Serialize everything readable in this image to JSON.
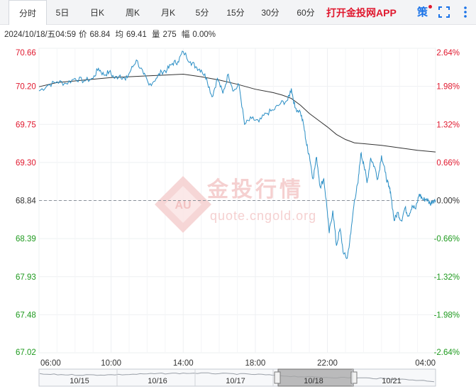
{
  "tabs": [
    {
      "label": "分时",
      "active": true
    },
    {
      "label": "5日",
      "active": false
    },
    {
      "label": "日K",
      "active": false
    },
    {
      "label": "周K",
      "active": false
    },
    {
      "label": "月K",
      "active": false
    },
    {
      "label": "5分",
      "active": false
    },
    {
      "label": "15分",
      "active": false
    },
    {
      "label": "30分",
      "active": false
    },
    {
      "label": "60分",
      "active": false
    }
  ],
  "promo_label": "打开金投网APP",
  "strategy_label": "策",
  "info": {
    "datetime": "2024/10/18/五04:59",
    "price_label": "价",
    "price": "68.84",
    "avg_label": "均",
    "avg": "69.41",
    "vol_label": "量",
    "vol": "275",
    "change_label": "幅",
    "change": "0.00%"
  },
  "watermark": {
    "brand": "金投行情",
    "url": "quote.cngold.org",
    "logo_text": "AU"
  },
  "colors": {
    "up": "#e0182e",
    "down": "#1e9a1e",
    "price_line": "#2a8ec5",
    "avg_line": "#333333",
    "grid": "#eef0f2"
  },
  "chart_data": {
    "type": "line",
    "x_ticks": [
      "06:00",
      "10:00",
      "14:00",
      "18:00",
      "22:00",
      "04:00"
    ],
    "x_tick_hours": [
      0,
      4,
      8,
      12,
      16,
      22
    ],
    "x_range_hours": [
      0,
      22
    ],
    "ylim": [
      67.02,
      70.66
    ],
    "prev_close": 68.84,
    "y_ticks": [
      "70.66",
      "70.20",
      "69.75",
      "69.30",
      "68.84",
      "68.39",
      "67.93",
      "67.48",
      "67.02"
    ],
    "pct_ticks": [
      "2.64%",
      "1.98%",
      "1.32%",
      "0.66%",
      "0.00%",
      "-0.66%",
      "-1.32%",
      "-1.98%",
      "-2.64%"
    ],
    "price_series": [
      [
        0.0,
        70.15
      ],
      [
        0.5,
        70.22
      ],
      [
        1.0,
        70.26
      ],
      [
        1.5,
        70.24
      ],
      [
        2.0,
        70.3
      ],
      [
        2.5,
        70.27
      ],
      [
        3.0,
        70.3
      ],
      [
        3.3,
        70.42
      ],
      [
        3.6,
        70.34
      ],
      [
        3.9,
        70.38
      ],
      [
        4.2,
        70.3
      ],
      [
        4.5,
        70.34
      ],
      [
        4.8,
        70.28
      ],
      [
        5.1,
        70.4
      ],
      [
        5.4,
        70.52
      ],
      [
        5.8,
        70.35
      ],
      [
        6.1,
        70.22
      ],
      [
        6.5,
        70.3
      ],
      [
        6.8,
        70.38
      ],
      [
        7.1,
        70.4
      ],
      [
        7.4,
        70.48
      ],
      [
        7.7,
        70.5
      ],
      [
        8.0,
        70.62
      ],
      [
        8.4,
        70.5
      ],
      [
        8.7,
        70.44
      ],
      [
        9.0,
        70.4
      ],
      [
        9.3,
        70.3
      ],
      [
        9.6,
        70.08
      ],
      [
        9.9,
        70.3
      ],
      [
        10.2,
        70.12
      ],
      [
        10.5,
        70.35
      ],
      [
        10.8,
        70.15
      ],
      [
        11.1,
        70.22
      ],
      [
        11.4,
        69.75
      ],
      [
        11.8,
        69.82
      ],
      [
        12.2,
        69.78
      ],
      [
        12.6,
        69.88
      ],
      [
        13.0,
        69.92
      ],
      [
        13.4,
        70.0
      ],
      [
        13.8,
        70.04
      ],
      [
        14.0,
        70.18
      ],
      [
        14.2,
        69.95
      ],
      [
        14.5,
        69.9
      ],
      [
        14.7,
        69.72
      ],
      [
        14.85,
        69.5
      ],
      [
        15.0,
        69.38
      ],
      [
        15.2,
        69.1
      ],
      [
        15.4,
        69.36
      ],
      [
        15.6,
        69.0
      ],
      [
        15.8,
        69.1
      ],
      [
        16.0,
        68.7
      ],
      [
        16.1,
        68.45
      ],
      [
        16.3,
        68.72
      ],
      [
        16.5,
        68.3
      ],
      [
        16.7,
        68.5
      ],
      [
        16.9,
        68.2
      ],
      [
        17.1,
        68.15
      ],
      [
        17.3,
        68.45
      ],
      [
        17.5,
        68.85
      ],
      [
        17.7,
        69.05
      ],
      [
        17.85,
        69.4
      ],
      [
        18.0,
        69.3
      ],
      [
        18.2,
        69.05
      ],
      [
        18.4,
        69.35
      ],
      [
        18.6,
        69.25
      ],
      [
        18.8,
        69.1
      ],
      [
        19.0,
        69.38
      ],
      [
        19.2,
        69.18
      ],
      [
        19.4,
        69.0
      ],
      [
        19.5,
        68.95
      ],
      [
        19.7,
        68.6
      ],
      [
        19.9,
        68.7
      ],
      [
        20.1,
        68.6
      ],
      [
        20.3,
        68.75
      ],
      [
        20.5,
        68.66
      ],
      [
        20.7,
        68.78
      ],
      [
        20.9,
        68.74
      ],
      [
        21.1,
        68.92
      ],
      [
        21.3,
        68.85
      ],
      [
        21.5,
        68.86
      ],
      [
        21.7,
        68.8
      ],
      [
        21.85,
        68.84
      ],
      [
        22.0,
        68.84
      ]
    ],
    "avg_series": [
      [
        0.0,
        70.2
      ],
      [
        1.0,
        70.25
      ],
      [
        2.0,
        70.27
      ],
      [
        3.0,
        70.29
      ],
      [
        4.0,
        70.31
      ],
      [
        5.0,
        70.32
      ],
      [
        6.0,
        70.33
      ],
      [
        7.0,
        70.34
      ],
      [
        8.0,
        70.35
      ],
      [
        9.0,
        70.32
      ],
      [
        10.0,
        70.28
      ],
      [
        11.0,
        70.23
      ],
      [
        12.0,
        70.17
      ],
      [
        13.0,
        70.13
      ],
      [
        13.5,
        70.1
      ],
      [
        14.0,
        70.06
      ],
      [
        14.5,
        69.98
      ],
      [
        15.0,
        69.88
      ],
      [
        15.5,
        69.8
      ],
      [
        16.0,
        69.72
      ],
      [
        16.5,
        69.63
      ],
      [
        17.0,
        69.57
      ],
      [
        17.5,
        69.53
      ],
      [
        18.0,
        69.52
      ],
      [
        19.0,
        69.5
      ],
      [
        20.0,
        69.47
      ],
      [
        21.0,
        69.44
      ],
      [
        22.0,
        69.42
      ]
    ]
  },
  "navigator": {
    "dates": [
      "10/15",
      "10/16",
      "10/17",
      "10/18",
      "10/21"
    ]
  }
}
